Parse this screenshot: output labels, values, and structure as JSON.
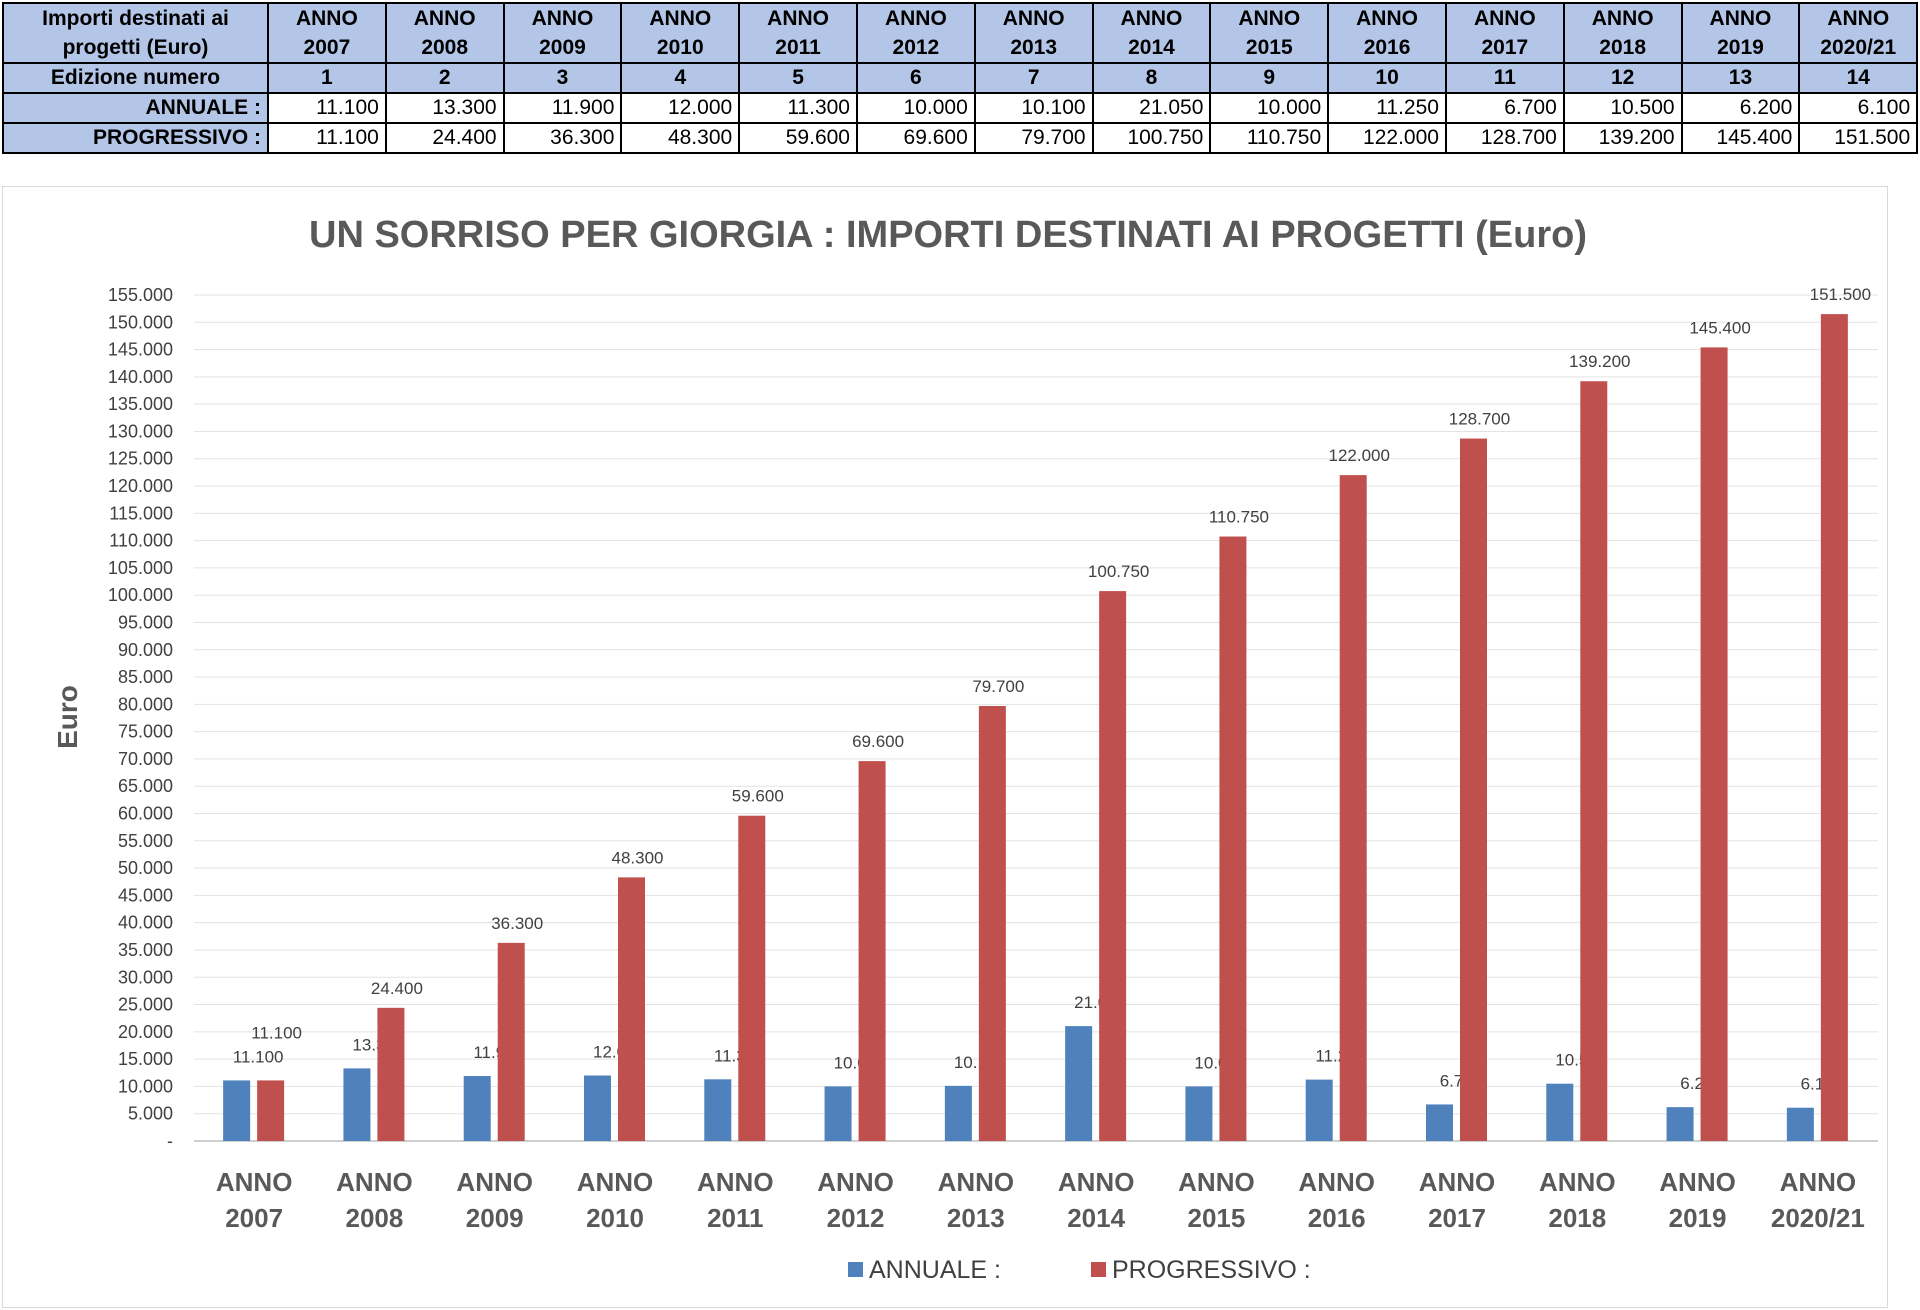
{
  "table": {
    "header_label": "Importi destinati ai progetti (Euro)",
    "columns": [
      "ANNO 2007",
      "ANNO 2008",
      "ANNO 2009",
      "ANNO 2010",
      "ANNO 2011",
      "ANNO 2012",
      "ANNO 2013",
      "ANNO 2014",
      "ANNO 2015",
      "ANNO 2016",
      "ANNO 2017",
      "ANNO 2018",
      "ANNO 2019",
      "ANNO 2020/21"
    ],
    "rows": [
      {
        "label": "Edizione numero",
        "values": [
          "1",
          "2",
          "3",
          "4",
          "5",
          "6",
          "7",
          "8",
          "9",
          "10",
          "11",
          "12",
          "13",
          "14"
        ]
      },
      {
        "label": "ANNUALE :",
        "values": [
          "11.100",
          "13.300",
          "11.900",
          "12.000",
          "11.300",
          "10.000",
          "10.100",
          "21.050",
          "10.000",
          "11.250",
          "6.700",
          "10.500",
          "6.200",
          "6.100"
        ]
      },
      {
        "label": "PROGRESSIVO :",
        "values": [
          "11.100",
          "24.400",
          "36.300",
          "48.300",
          "59.600",
          "69.600",
          "79.700",
          "100.750",
          "110.750",
          "122.000",
          "128.700",
          "139.200",
          "145.400",
          "151.500"
        ]
      }
    ]
  },
  "chart_data": {
    "type": "bar",
    "title": "UN SORRISO PER GIORGIA : IMPORTI DESTINATI AI PROGETTI (Euro)",
    "xlabel": "",
    "ylabel": "Euro",
    "ylim": [
      0,
      155000
    ],
    "ytick_step": 5000,
    "ytick_zero_label": "-",
    "grid": true,
    "legend": "bottom",
    "categories": [
      "ANNO 2007",
      "ANNO 2008",
      "ANNO 2009",
      "ANNO 2010",
      "ANNO 2011",
      "ANNO 2012",
      "ANNO 2013",
      "ANNO 2014",
      "ANNO 2015",
      "ANNO 2016",
      "ANNO 2017",
      "ANNO 2018",
      "ANNO 2019",
      "ANNO 2020/21"
    ],
    "series": [
      {
        "name": "ANNUALE :",
        "color": "#4f81bd",
        "values": [
          11100,
          13300,
          11900,
          12000,
          11300,
          10000,
          10100,
          21050,
          10000,
          11250,
          6700,
          10500,
          6200,
          6100
        ]
      },
      {
        "name": "PROGRESSIVO :",
        "color": "#c0504d",
        "values": [
          11100,
          24400,
          36300,
          48300,
          59600,
          69600,
          79700,
          100750,
          110750,
          122000,
          128700,
          139200,
          145400,
          151500
        ]
      }
    ]
  }
}
